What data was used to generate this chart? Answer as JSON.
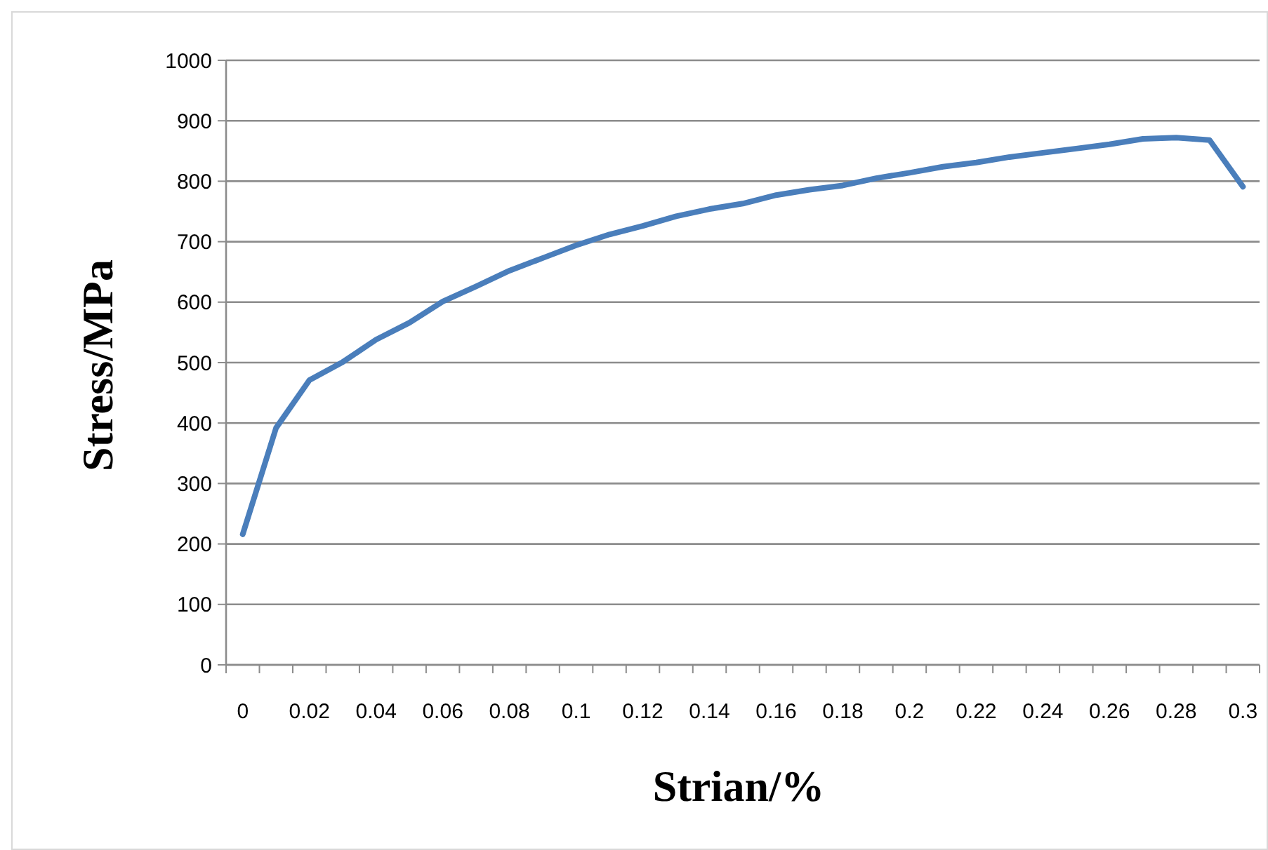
{
  "chart_data": {
    "type": "line",
    "xlabel": "Strian/%",
    "ylabel": "Stress/MPa",
    "categories": [
      "0",
      null,
      "0.02",
      null,
      "0.04",
      null,
      "0.06",
      null,
      "0.08",
      null,
      "0.1",
      null,
      "0.12",
      null,
      "0.14",
      null,
      "0.16",
      null,
      "0.18",
      null,
      "0.2",
      null,
      "0.22",
      null,
      "0.24",
      null,
      "0.26",
      null,
      "0.28",
      null,
      "0.3"
    ],
    "series": [
      {
        "color": "#4a7ebb",
        "values": [
          216,
          392,
          471,
          501,
          538,
          566,
          601,
          626,
          652,
          673,
          694,
          712,
          726,
          742,
          754,
          763,
          777,
          786,
          793,
          805,
          814,
          824,
          831,
          840,
          847,
          854,
          861,
          870,
          872,
          868,
          791
        ]
      }
    ],
    "ylim": [
      0,
      1000
    ],
    "yticks": [
      0,
      100,
      200,
      300,
      400,
      500,
      600,
      700,
      800,
      900,
      1000
    ],
    "grid": "y",
    "marker": "none",
    "line_style": "solid"
  }
}
